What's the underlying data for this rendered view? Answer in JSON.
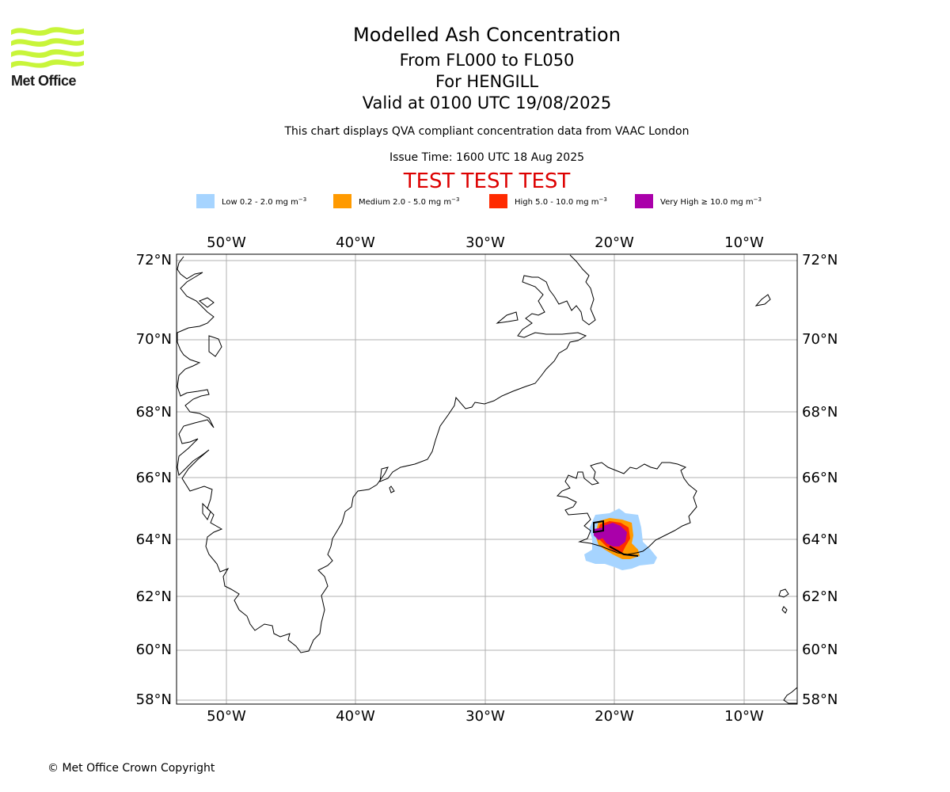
{
  "header": {
    "logo_text": "Met Office",
    "title": "Modelled Ash Concentration",
    "subtitle_levels": "From FL000 to FL050",
    "subtitle_volcano": "For HENGILL",
    "subtitle_valid": "Valid at 0100 UTC 19/08/2025",
    "note": "This chart displays QVA compliant concentration data from VAAC London",
    "issue_time": "Issue Time: 1600 UTC 18 Aug 2025",
    "test_banner": "TEST TEST TEST"
  },
  "legend": [
    {
      "label": "Low 0.2 - 2.0 mg m",
      "unit_exp": "−3",
      "color": "#a6d4ff"
    },
    {
      "label": "Medium 2.0 - 5.0 mg m",
      "unit_exp": "−3",
      "color": "#ff9a00"
    },
    {
      "label": "High 5.0 - 10.0 mg m",
      "unit_exp": "−3",
      "color": "#ff2a00"
    },
    {
      "label": "Very High  ≥  10.0 mg m",
      "unit_exp": "−3",
      "color": "#aa00aa"
    }
  ],
  "map": {
    "lon_labels": [
      "50°W",
      "40°W",
      "30°W",
      "20°W",
      "10°W"
    ],
    "lat_labels": [
      "72°N",
      "70°N",
      "68°N",
      "66°N",
      "64°N",
      "62°N",
      "60°N",
      "58°N"
    ],
    "gridline_color": "#b0b0b0"
  },
  "footer": {
    "copyright": "© Met Office Crown Copyright"
  }
}
